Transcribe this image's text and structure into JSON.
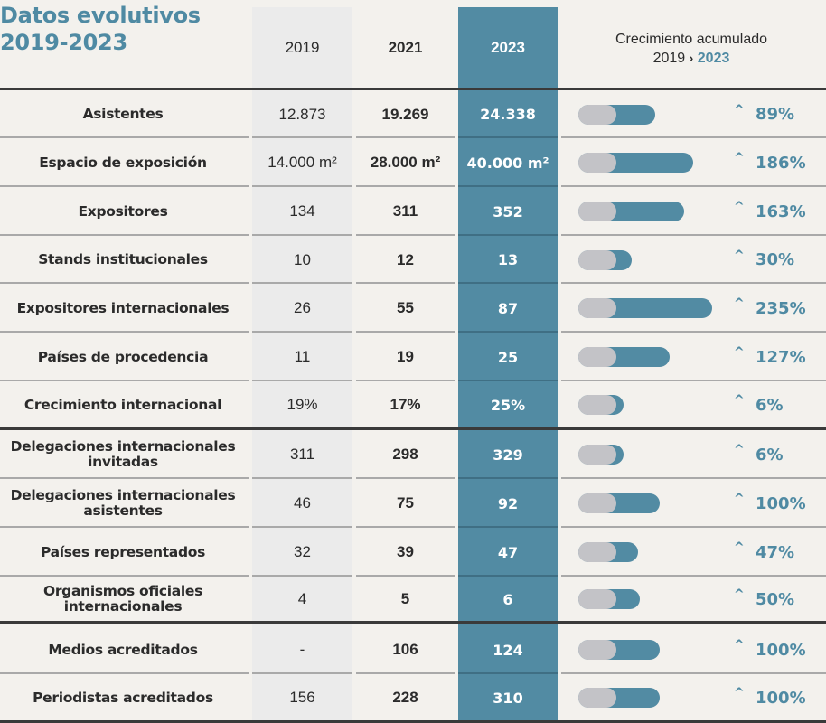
{
  "title": {
    "line1": "Datos evolutivos",
    "line2": "2019-2023"
  },
  "colors": {
    "accent": "#4f8aa3",
    "highlight_column": "#528ba3",
    "bar_base": "#c3c3c7",
    "background": "#f3f1ed"
  },
  "columns": {
    "y2019": "2019",
    "y2021": "2021",
    "y2023": "2023",
    "growth_line1": "Crecimiento acumulado",
    "growth_from": "2019",
    "growth_arrow": "›",
    "growth_to": "2023"
  },
  "growth_icon": "chevron-up-icon",
  "rows": [
    {
      "label": "Asistentes",
      "v2019": "12.873",
      "v2021": "19.269",
      "v2023": "24.338",
      "growth": "89%",
      "growth_value": 89
    },
    {
      "label": "Espacio de exposición",
      "v2019": "14.000 m²",
      "v2021": "28.000 m²",
      "v2023": "40.000 m²",
      "growth": "186%",
      "growth_value": 186
    },
    {
      "label": "Expositores",
      "v2019": "134",
      "v2021": "311",
      "v2023": "352",
      "growth": "163%",
      "growth_value": 163
    },
    {
      "label": "Stands institucionales",
      "v2019": "10",
      "v2021": "12",
      "v2023": "13",
      "growth": "30%",
      "growth_value": 30
    },
    {
      "label": "Expositores internacionales",
      "v2019": "26",
      "v2021": "55",
      "v2023": "87",
      "growth": "235%",
      "growth_value": 235
    },
    {
      "label": "Países de procedencia",
      "v2019": "11",
      "v2021": "19",
      "v2023": "25",
      "growth": "127%",
      "growth_value": 127
    },
    {
      "label": "Crecimiento internacional",
      "v2019": "19%",
      "v2021": "17%",
      "v2023": "25%",
      "growth": "6%",
      "growth_value": 6
    },
    {
      "label": "Delegaciones internacionales invitadas",
      "v2019": "311",
      "v2021": "298",
      "v2023": "329",
      "growth": "6%",
      "growth_value": 6
    },
    {
      "label": "Delegaciones internacionales asistentes",
      "v2019": "46",
      "v2021": "75",
      "v2023": "92",
      "growth": "100%",
      "growth_value": 100
    },
    {
      "label": "Países representados",
      "v2019": "32",
      "v2021": "39",
      "v2023": "47",
      "growth": "47%",
      "growth_value": 47
    },
    {
      "label": "Organismos oficiales internacionales",
      "v2019": "4",
      "v2021": "5",
      "v2023": "6",
      "growth": "50%",
      "growth_value": 50
    },
    {
      "label": "Medios acreditados",
      "v2019": "-",
      "v2021": "106",
      "v2023": "124",
      "growth": "100%",
      "growth_value": 100
    },
    {
      "label": "Periodistas acreditados",
      "v2019": "156",
      "v2021": "228",
      "v2023": "310",
      "growth": "100%",
      "growth_value": 100
    }
  ]
}
